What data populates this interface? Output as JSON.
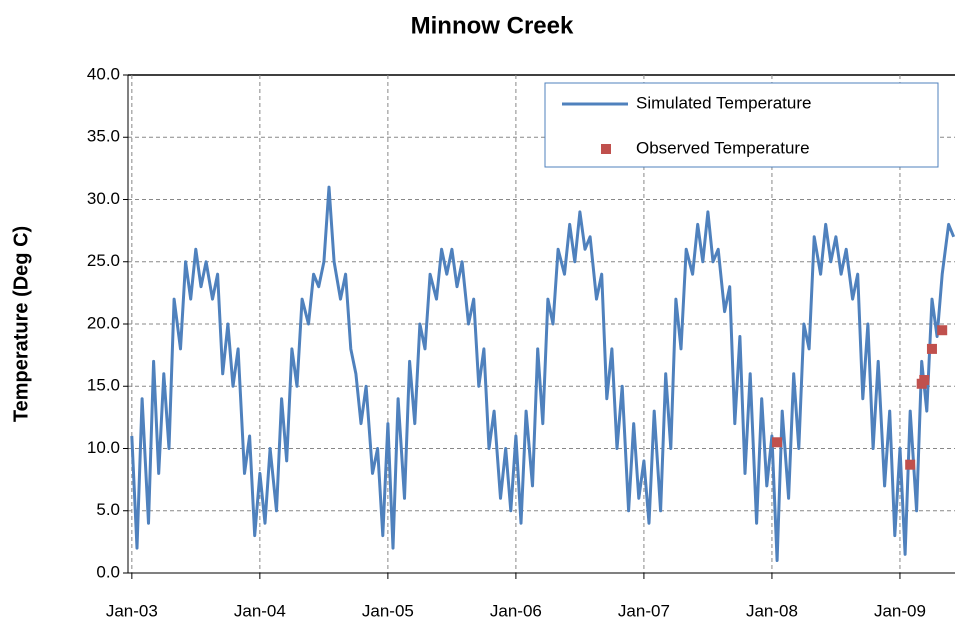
{
  "chart_data": {
    "type": "line",
    "title": "Minnow Creek",
    "y_label": "Temperature (Deg C)",
    "xlim": [
      2002.97,
      2009.43
    ],
    "ylim": [
      0,
      40
    ],
    "grid": true,
    "legend": "top-right",
    "xticks": [
      {
        "value": 2003,
        "label": "Jan-03"
      },
      {
        "value": 2004,
        "label": "Jan-04"
      },
      {
        "value": 2005,
        "label": "Jan-05"
      },
      {
        "value": 2006,
        "label": "Jan-06"
      },
      {
        "value": 2007,
        "label": "Jan-07"
      },
      {
        "value": 2008,
        "label": "Jan-08"
      },
      {
        "value": 2009,
        "label": "Jan-09"
      }
    ],
    "yticks": [
      {
        "value": 0,
        "label": "0.0"
      },
      {
        "value": 5,
        "label": "5.0"
      },
      {
        "value": 10,
        "label": "10.0"
      },
      {
        "value": 15,
        "label": "15.0"
      },
      {
        "value": 20,
        "label": "20.0"
      },
      {
        "value": 25,
        "label": "25.0"
      },
      {
        "value": 30,
        "label": "30.0"
      },
      {
        "value": 35,
        "label": "35.0"
      },
      {
        "value": 40,
        "label": "40.0"
      }
    ],
    "series": [
      {
        "name": "Simulated Temperature",
        "style": "line",
        "color": "#4f81bd",
        "x": [
          2003.0,
          2003.04,
          2003.08,
          2003.13,
          2003.17,
          2003.21,
          2003.25,
          2003.29,
          2003.33,
          2003.38,
          2003.42,
          2003.46,
          2003.5,
          2003.54,
          2003.58,
          2003.63,
          2003.67,
          2003.71,
          2003.75,
          2003.79,
          2003.83,
          2003.88,
          2003.92,
          2003.96,
          2004.0,
          2004.04,
          2004.08,
          2004.13,
          2004.17,
          2004.21,
          2004.25,
          2004.29,
          2004.33,
          2004.38,
          2004.42,
          2004.46,
          2004.5,
          2004.54,
          2004.58,
          2004.63,
          2004.67,
          2004.71,
          2004.75,
          2004.79,
          2004.83,
          2004.88,
          2004.92,
          2004.96,
          2005.0,
          2005.04,
          2005.08,
          2005.13,
          2005.17,
          2005.21,
          2005.25,
          2005.29,
          2005.33,
          2005.38,
          2005.42,
          2005.46,
          2005.5,
          2005.54,
          2005.58,
          2005.63,
          2005.67,
          2005.71,
          2005.75,
          2005.79,
          2005.83,
          2005.88,
          2005.92,
          2005.96,
          2006.0,
          2006.04,
          2006.08,
          2006.13,
          2006.17,
          2006.21,
          2006.25,
          2006.29,
          2006.33,
          2006.38,
          2006.42,
          2006.46,
          2006.5,
          2006.54,
          2006.58,
          2006.63,
          2006.67,
          2006.71,
          2006.75,
          2006.79,
          2006.83,
          2006.88,
          2006.92,
          2006.96,
          2007.0,
          2007.04,
          2007.08,
          2007.13,
          2007.17,
          2007.21,
          2007.25,
          2007.29,
          2007.33,
          2007.38,
          2007.42,
          2007.46,
          2007.5,
          2007.54,
          2007.58,
          2007.63,
          2007.67,
          2007.71,
          2007.75,
          2007.79,
          2007.83,
          2007.88,
          2007.92,
          2007.96,
          2008.0,
          2008.04,
          2008.08,
          2008.13,
          2008.17,
          2008.21,
          2008.25,
          2008.29,
          2008.33,
          2008.38,
          2008.42,
          2008.46,
          2008.5,
          2008.54,
          2008.58,
          2008.63,
          2008.67,
          2008.71,
          2008.75,
          2008.79,
          2008.83,
          2008.88,
          2008.92,
          2008.96,
          2009.0,
          2009.04,
          2009.08,
          2009.13,
          2009.17,
          2009.21,
          2009.25,
          2009.29,
          2009.33,
          2009.38,
          2009.42
        ],
        "values": [
          11,
          2,
          14,
          4,
          17,
          8,
          16,
          10,
          22,
          18,
          25,
          22,
          26,
          23,
          25,
          22,
          24,
          16,
          20,
          15,
          18,
          8,
          11,
          3,
          8,
          4,
          10,
          5,
          14,
          9,
          18,
          15,
          22,
          20,
          24,
          23,
          25,
          31,
          25,
          22,
          24,
          18,
          16,
          12,
          15,
          8,
          10,
          3,
          12,
          2,
          14,
          6,
          17,
          12,
          20,
          18,
          24,
          22,
          26,
          24,
          26,
          23,
          25,
          20,
          22,
          15,
          18,
          10,
          13,
          6,
          10,
          5,
          11,
          4,
          13,
          7,
          18,
          12,
          22,
          20,
          26,
          24,
          28,
          25,
          29,
          26,
          27,
          22,
          24,
          14,
          18,
          10,
          15,
          5,
          12,
          6,
          9,
          4,
          13,
          5,
          16,
          10,
          22,
          18,
          26,
          24,
          28,
          25,
          29,
          25,
          26,
          21,
          23,
          12,
          19,
          8,
          16,
          4,
          14,
          7,
          11,
          1,
          13,
          6,
          16,
          10,
          20,
          18,
          27,
          24,
          28,
          25,
          27,
          24,
          26,
          22,
          24,
          14,
          20,
          10,
          17,
          7,
          13,
          3,
          10,
          1.5,
          13,
          5,
          17,
          13,
          22,
          19,
          24,
          28,
          27
        ]
      },
      {
        "name": "Observed Temperature",
        "style": "markers",
        "color": "#c0504d",
        "x": [
          2008.04,
          2009.08,
          2009.17,
          2009.19,
          2009.25,
          2009.33
        ],
        "values": [
          10.5,
          8.7,
          15.2,
          15.5,
          18.0,
          19.5
        ]
      }
    ]
  }
}
